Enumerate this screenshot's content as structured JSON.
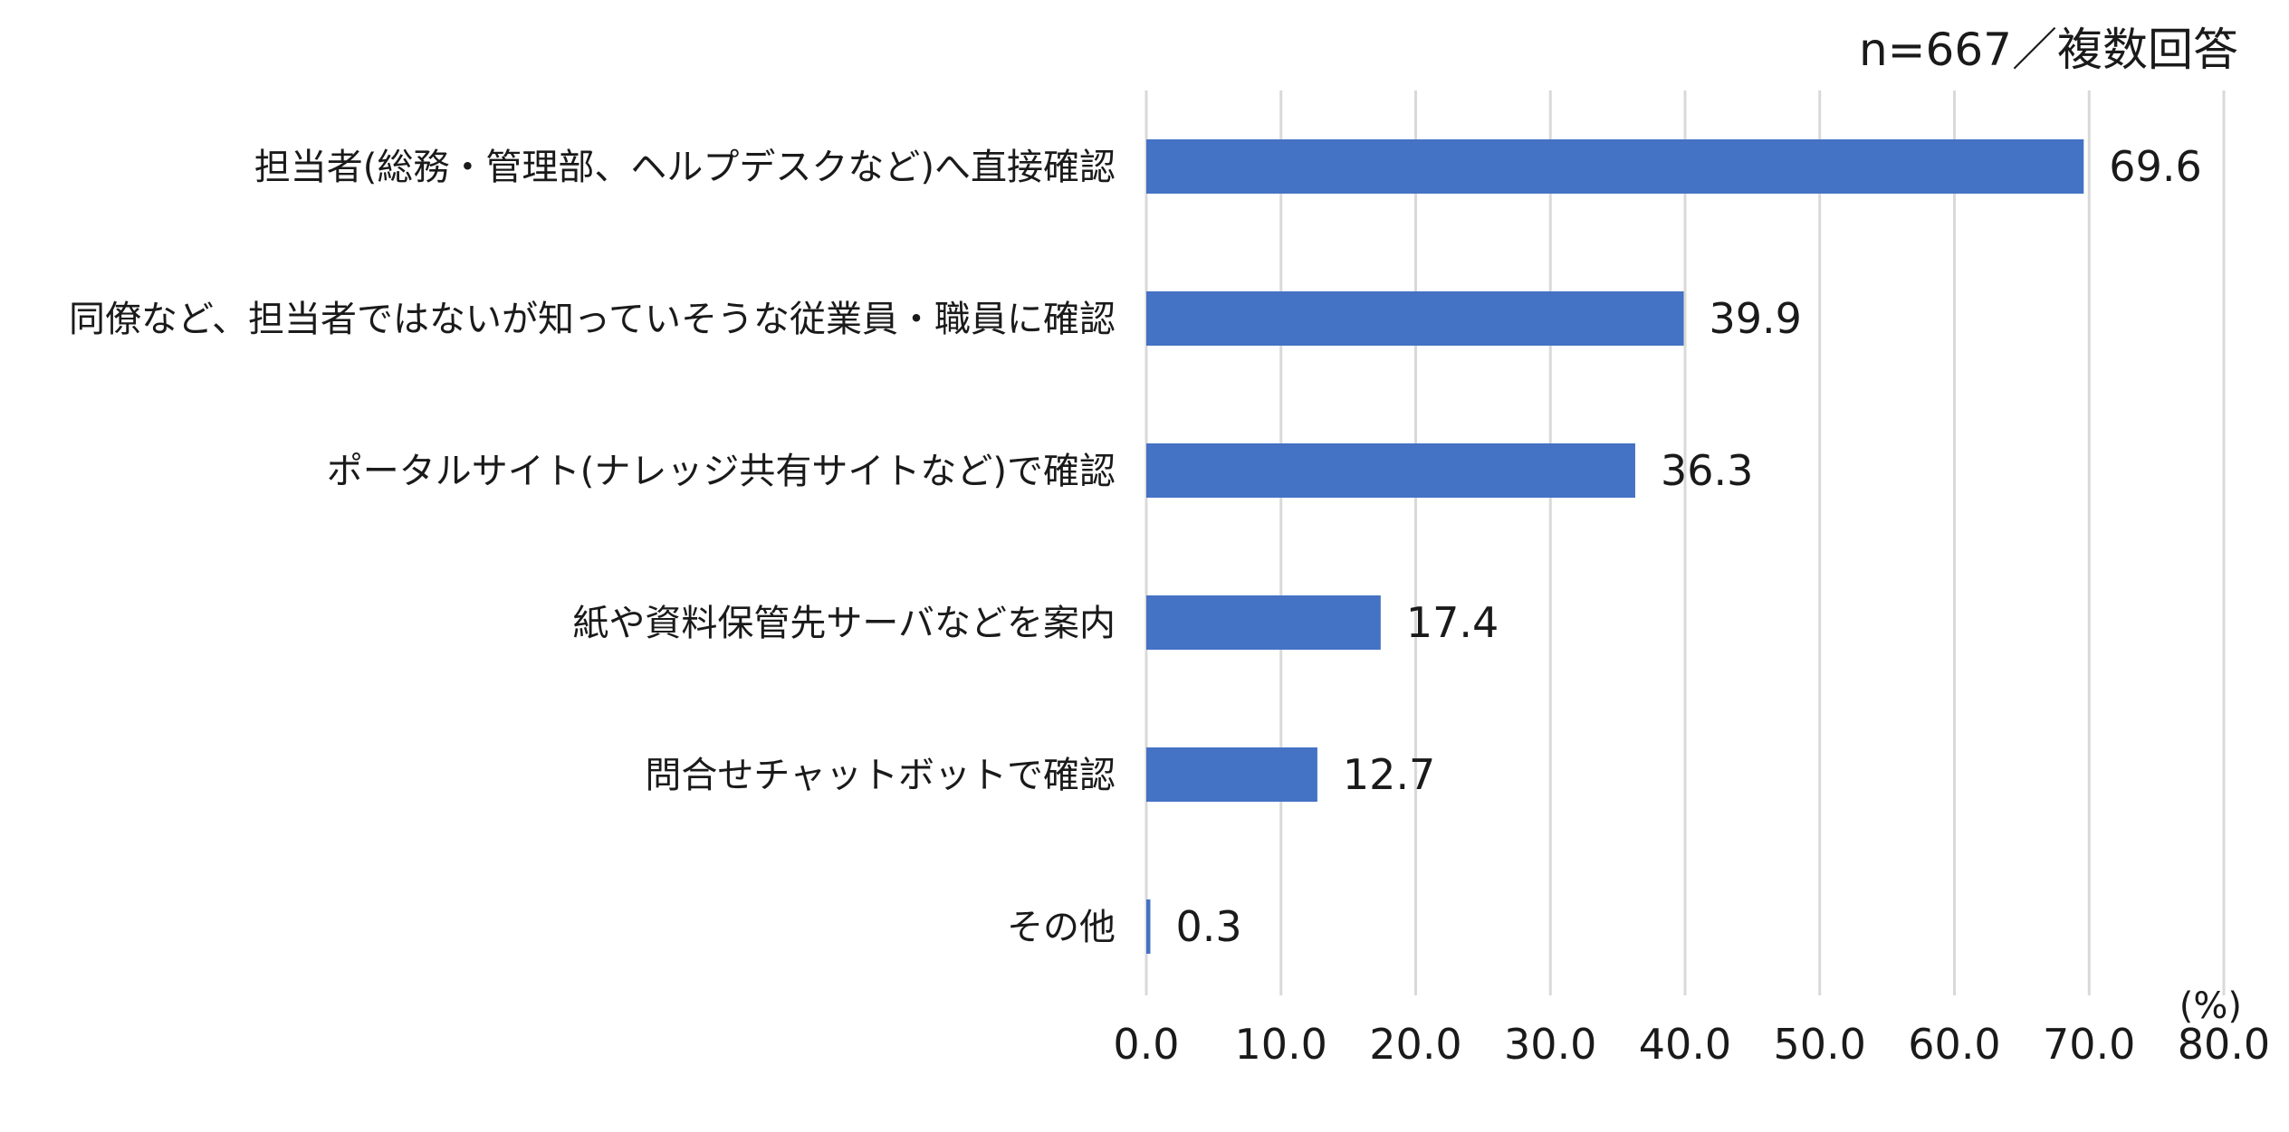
{
  "chart_data": {
    "type": "bar",
    "orientation": "horizontal",
    "note": "n=667／複数回答",
    "unit": "(%)",
    "categories": [
      "担当者(総務・管理部、ヘルプデスクなど)へ直接確認",
      "同僚など、担当者ではないが知っていそうな従業員・職員に確認",
      "ポータルサイト(ナレッジ共有サイトなど)で確認",
      "紙や資料保管先サーバなどを案内",
      "問合せチャットボットで確認",
      "その他"
    ],
    "values": [
      69.6,
      39.9,
      36.3,
      17.4,
      12.7,
      0.3
    ],
    "value_labels": [
      "69.6",
      "39.9",
      "36.3",
      "17.4",
      "12.7",
      "0.3"
    ],
    "xlim": [
      0,
      80
    ],
    "ticks": [
      "0.0",
      "10.0",
      "20.0",
      "30.0",
      "40.0",
      "50.0",
      "60.0",
      "70.0",
      "80.0"
    ],
    "grid": true,
    "legend": "none",
    "bar_color": "#4472c4"
  }
}
